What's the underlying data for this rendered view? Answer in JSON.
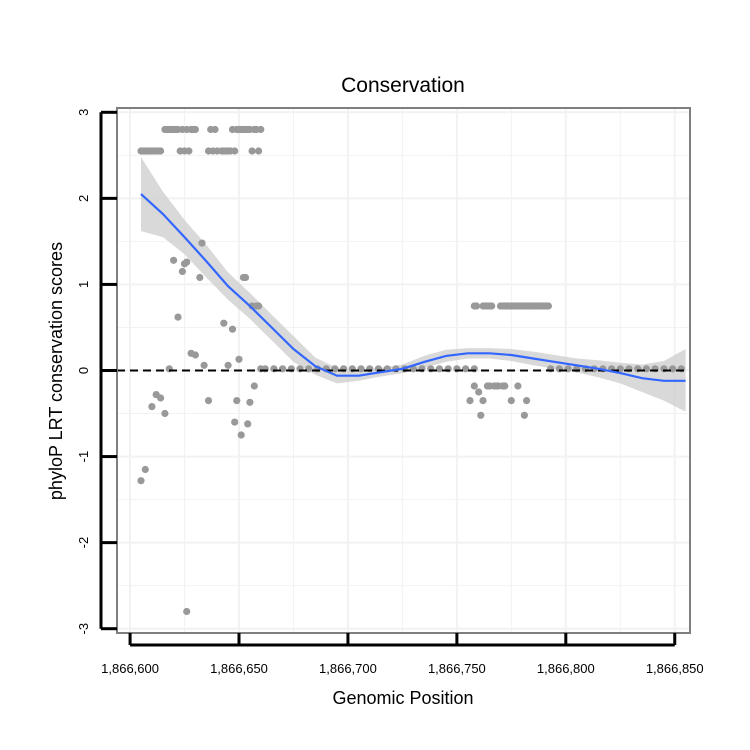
{
  "chart_data": {
    "type": "scatter",
    "title": "Conservation",
    "xlabel": "Genomic Position",
    "ylabel": "phyloP LRT conservation scores",
    "xlim": [
      1866594,
      1866857
    ],
    "ylim": [
      -3.05,
      3.05
    ],
    "x_ticks": [
      1866600,
      1866650,
      1866700,
      1866750,
      1866800,
      1866850
    ],
    "x_tick_labels": [
      "1,866,600",
      "1,866,650",
      "1,866,700",
      "1,866,750",
      "1,866,800",
      "1,866,850"
    ],
    "y_ticks": [
      -3,
      -2,
      -1,
      0,
      1,
      2,
      3
    ],
    "y_tick_labels": [
      "-3",
      "-2",
      "-1",
      "0",
      "1",
      "2",
      "3"
    ],
    "reference_line": {
      "y": 0,
      "style": "dashed"
    },
    "colors": {
      "points": "#999999",
      "smooth": "#3366FF",
      "band": "#CCCCCC",
      "frame": "#7F7F7F",
      "grid": "#F2F2F2"
    },
    "series": [
      {
        "name": "phyloP LRT scores",
        "kind": "points",
        "points": [
          [
            1866605,
            2.55
          ],
          [
            1866606,
            2.55
          ],
          [
            1866607,
            2.55
          ],
          [
            1866608,
            2.55
          ],
          [
            1866609,
            2.55
          ],
          [
            1866610,
            2.55
          ],
          [
            1866611,
            2.55
          ],
          [
            1866612,
            2.55
          ],
          [
            1866613,
            2.55
          ],
          [
            1866614,
            2.55
          ],
          [
            1866616,
            2.8
          ],
          [
            1866617,
            2.8
          ],
          [
            1866618,
            2.8
          ],
          [
            1866619,
            2.8
          ],
          [
            1866620,
            2.8
          ],
          [
            1866621,
            2.8
          ],
          [
            1866622,
            2.8
          ],
          [
            1866623,
            2.55
          ],
          [
            1866624,
            2.8
          ],
          [
            1866625,
            2.55
          ],
          [
            1866626,
            2.8
          ],
          [
            1866627,
            2.55
          ],
          [
            1866628,
            2.8
          ],
          [
            1866629,
            2.8
          ],
          [
            1866630,
            2.8
          ],
          [
            1866636,
            2.55
          ],
          [
            1866637,
            2.8
          ],
          [
            1866638,
            2.55
          ],
          [
            1866639,
            2.8
          ],
          [
            1866640,
            2.55
          ],
          [
            1866642,
            2.55
          ],
          [
            1866643,
            2.55
          ],
          [
            1866644,
            2.55
          ],
          [
            1866645,
            2.55
          ],
          [
            1866646,
            2.55
          ],
          [
            1866647,
            2.8
          ],
          [
            1866648,
            2.55
          ],
          [
            1866649,
            2.8
          ],
          [
            1866650,
            2.8
          ],
          [
            1866651,
            2.8
          ],
          [
            1866652,
            2.8
          ],
          [
            1866653,
            2.8
          ],
          [
            1866654,
            2.8
          ],
          [
            1866655,
            2.8
          ],
          [
            1866656,
            2.55
          ],
          [
            1866657,
            2.8
          ],
          [
            1866658,
            2.8
          ],
          [
            1866659,
            2.55
          ],
          [
            1866660,
            2.8
          ],
          [
            1866605,
            -1.28
          ],
          [
            1866607,
            -1.15
          ],
          [
            1866610,
            -0.42
          ],
          [
            1866612,
            -0.28
          ],
          [
            1866614,
            -0.32
          ],
          [
            1866616,
            -0.5
          ],
          [
            1866618,
            0.02
          ],
          [
            1866620,
            1.28
          ],
          [
            1866622,
            0.62
          ],
          [
            1866624,
            1.15
          ],
          [
            1866625,
            1.24
          ],
          [
            1866626,
            1.26
          ],
          [
            1866626,
            -2.8
          ],
          [
            1866628,
            0.2
          ],
          [
            1866630,
            0.18
          ],
          [
            1866632,
            1.08
          ],
          [
            1866633,
            1.48
          ],
          [
            1866634,
            0.06
          ],
          [
            1866636,
            -0.35
          ],
          [
            1866643,
            0.55
          ],
          [
            1866645,
            0.06
          ],
          [
            1866647,
            0.48
          ],
          [
            1866648,
            -0.6
          ],
          [
            1866649,
            -0.35
          ],
          [
            1866650,
            0.13
          ],
          [
            1866651,
            -0.75
          ],
          [
            1866652,
            1.08
          ],
          [
            1866653,
            1.08
          ],
          [
            1866654,
            -0.62
          ],
          [
            1866655,
            -0.37
          ],
          [
            1866656,
            0.75
          ],
          [
            1866657,
            -0.18
          ],
          [
            1866658,
            0.75
          ],
          [
            1866659,
            0.75
          ],
          [
            1866660,
            0.02
          ],
          [
            1866662,
            0.02
          ],
          [
            1866666,
            0.02
          ],
          [
            1866670,
            0.02
          ],
          [
            1866674,
            0.02
          ],
          [
            1866678,
            0.02
          ],
          [
            1866682,
            0.02
          ],
          [
            1866686,
            0.02
          ],
          [
            1866690,
            0.02
          ],
          [
            1866694,
            0.02
          ],
          [
            1866698,
            0.02
          ],
          [
            1866702,
            0.02
          ],
          [
            1866706,
            0.02
          ],
          [
            1866710,
            0.02
          ],
          [
            1866714,
            0.02
          ],
          [
            1866718,
            0.02
          ],
          [
            1866722,
            0.02
          ],
          [
            1866726,
            0.02
          ],
          [
            1866730,
            0.02
          ],
          [
            1866734,
            0.02
          ],
          [
            1866738,
            0.02
          ],
          [
            1866742,
            0.02
          ],
          [
            1866746,
            0.02
          ],
          [
            1866750,
            0.02
          ],
          [
            1866754,
            0.02
          ],
          [
            1866758,
            0.02
          ],
          [
            1866758,
            0.75
          ],
          [
            1866759,
            0.75
          ],
          [
            1866762,
            0.75
          ],
          [
            1866763,
            0.75
          ],
          [
            1866764,
            0.75
          ],
          [
            1866765,
            0.75
          ],
          [
            1866766,
            0.75
          ],
          [
            1866770,
            0.75
          ],
          [
            1866771,
            0.75
          ],
          [
            1866772,
            0.75
          ],
          [
            1866773,
            0.75
          ],
          [
            1866774,
            0.75
          ],
          [
            1866775,
            0.75
          ],
          [
            1866776,
            0.75
          ],
          [
            1866777,
            0.75
          ],
          [
            1866778,
            0.75
          ],
          [
            1866779,
            0.75
          ],
          [
            1866780,
            0.75
          ],
          [
            1866781,
            0.75
          ],
          [
            1866782,
            0.75
          ],
          [
            1866783,
            0.75
          ],
          [
            1866784,
            0.75
          ],
          [
            1866785,
            0.75
          ],
          [
            1866786,
            0.75
          ],
          [
            1866787,
            0.75
          ],
          [
            1866788,
            0.75
          ],
          [
            1866789,
            0.75
          ],
          [
            1866790,
            0.75
          ],
          [
            1866791,
            0.75
          ],
          [
            1866792,
            0.75
          ],
          [
            1866756,
            -0.35
          ],
          [
            1866758,
            -0.18
          ],
          [
            1866760,
            -0.25
          ],
          [
            1866761,
            -0.52
          ],
          [
            1866762,
            -0.35
          ],
          [
            1866764,
            -0.18
          ],
          [
            1866765,
            -0.18
          ],
          [
            1866767,
            -0.18
          ],
          [
            1866768,
            -0.18
          ],
          [
            1866769,
            -0.18
          ],
          [
            1866771,
            -0.18
          ],
          [
            1866772,
            -0.18
          ],
          [
            1866775,
            -0.35
          ],
          [
            1866778,
            -0.18
          ],
          [
            1866781,
            -0.52
          ],
          [
            1866782,
            -0.35
          ],
          [
            1866793,
            0.02
          ],
          [
            1866797,
            0.02
          ],
          [
            1866801,
            0.02
          ],
          [
            1866805,
            0.02
          ],
          [
            1866809,
            0.02
          ],
          [
            1866813,
            0.02
          ],
          [
            1866817,
            0.02
          ],
          [
            1866821,
            0.02
          ],
          [
            1866825,
            0.02
          ],
          [
            1866829,
            0.02
          ],
          [
            1866833,
            0.02
          ],
          [
            1866837,
            0.02
          ],
          [
            1866841,
            0.02
          ],
          [
            1866845,
            0.02
          ],
          [
            1866849,
            0.02
          ],
          [
            1866853,
            0.02
          ]
        ]
      },
      {
        "name": "loess fit",
        "kind": "smooth",
        "points": [
          [
            1866605,
            2.05
          ],
          [
            1866615,
            1.82
          ],
          [
            1866625,
            1.55
          ],
          [
            1866635,
            1.27
          ],
          [
            1866645,
            0.98
          ],
          [
            1866655,
            0.75
          ],
          [
            1866665,
            0.5
          ],
          [
            1866675,
            0.25
          ],
          [
            1866685,
            0.05
          ],
          [
            1866695,
            -0.06
          ],
          [
            1866705,
            -0.06
          ],
          [
            1866715,
            -0.02
          ],
          [
            1866725,
            0.02
          ],
          [
            1866735,
            0.1
          ],
          [
            1866745,
            0.17
          ],
          [
            1866755,
            0.2
          ],
          [
            1866765,
            0.2
          ],
          [
            1866775,
            0.18
          ],
          [
            1866785,
            0.14
          ],
          [
            1866795,
            0.1
          ],
          [
            1866805,
            0.06
          ],
          [
            1866815,
            0.02
          ],
          [
            1866825,
            -0.03
          ],
          [
            1866835,
            -0.09
          ],
          [
            1866845,
            -0.12
          ],
          [
            1866855,
            -0.12
          ]
        ],
        "ci_lower": [
          1.62,
          1.55,
          1.35,
          1.08,
          0.82,
          0.6,
          0.35,
          0.1,
          -0.05,
          -0.15,
          -0.12,
          -0.07,
          -0.03,
          0.03,
          0.1,
          0.14,
          0.14,
          0.11,
          0.06,
          0.02,
          -0.02,
          -0.08,
          -0.15,
          -0.25,
          -0.35,
          -0.48
        ],
        "ci_upper": [
          2.48,
          2.08,
          1.75,
          1.46,
          1.14,
          0.9,
          0.65,
          0.4,
          0.15,
          0.03,
          0.0,
          0.03,
          0.07,
          0.17,
          0.24,
          0.26,
          0.26,
          0.25,
          0.22,
          0.18,
          0.14,
          0.12,
          0.09,
          0.07,
          0.11,
          0.25
        ]
      }
    ]
  }
}
